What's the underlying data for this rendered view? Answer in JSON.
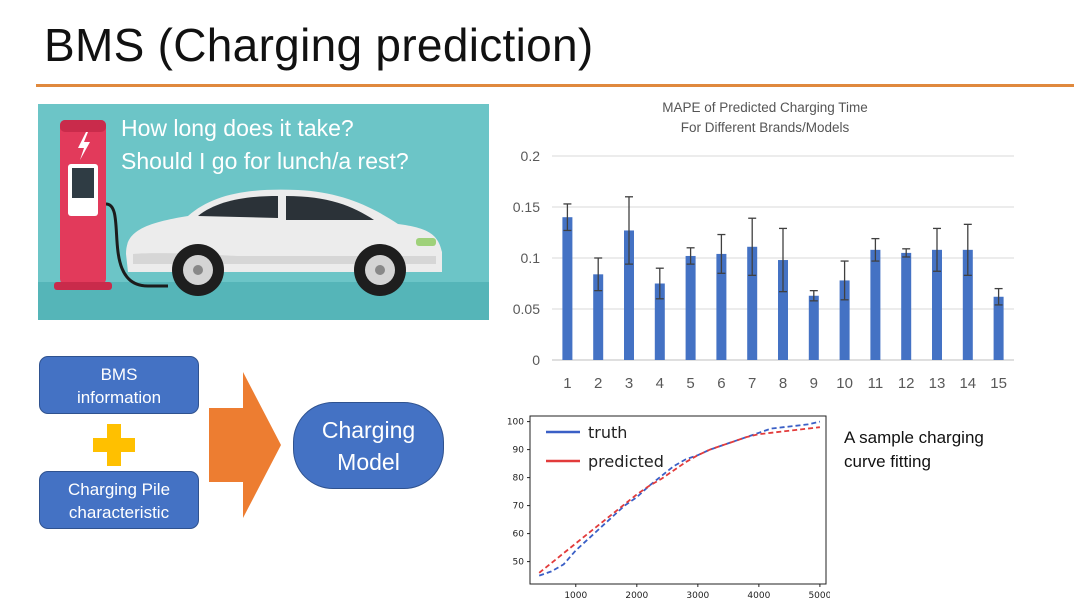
{
  "slide": {
    "title": "BMS (Charging prediction)",
    "accent_color": "#e0893d"
  },
  "hero": {
    "line1": "How long does it take?",
    "line2": "Should I go for lunch/a rest?",
    "background_color": "#6cc5c7"
  },
  "flow": {
    "bms_line1": "BMS",
    "bms_line2": "information",
    "plus_symbol": "+",
    "pile_line1": "Charging Pile",
    "pile_line2": "characteristic",
    "model_line1": "Charging",
    "model_line2": "Model",
    "box_color": "#4472c4",
    "arrow_color": "#ed7d31",
    "plus_color": "#ffc000"
  },
  "caption": {
    "line1": "A sample charging",
    "line2": "curve fitting"
  },
  "chart_data": [
    {
      "type": "bar",
      "title_line1": "MAPE of Predicted Charging Time",
      "title_line2": "For Different Brands/Models",
      "categories": [
        "1",
        "2",
        "3",
        "4",
        "5",
        "6",
        "7",
        "8",
        "9",
        "10",
        "11",
        "12",
        "13",
        "14",
        "15"
      ],
      "values": [
        0.14,
        0.084,
        0.127,
        0.075,
        0.102,
        0.104,
        0.111,
        0.098,
        0.063,
        0.078,
        0.108,
        0.105,
        0.108,
        0.108,
        0.062
      ],
      "error": [
        0.013,
        0.016,
        0.033,
        0.015,
        0.008,
        0.019,
        0.028,
        0.031,
        0.005,
        0.019,
        0.011,
        0.004,
        0.021,
        0.025,
        0.008
      ],
      "ylim": [
        0,
        0.2
      ],
      "yticks": [
        "0",
        "0.05",
        "0.1",
        "0.15",
        "0.2"
      ],
      "ytick_values": [
        0,
        0.05,
        0.1,
        0.15,
        0.2
      ],
      "grid": true,
      "color": "#4472c4"
    },
    {
      "type": "line",
      "xlim": [
        250,
        5100
      ],
      "ylim": [
        42,
        102
      ],
      "xticks": [
        1000,
        2000,
        3000,
        4000,
        5000
      ],
      "yticks": [
        50,
        60,
        70,
        80,
        90,
        100
      ],
      "legend_position": "top-left",
      "series": [
        {
          "name": "truth",
          "color": "#3a5fc6",
          "x": [
            400,
            600,
            800,
            1000,
            1200,
            1400,
            1600,
            1800,
            2000,
            2200,
            2400,
            2600,
            2800,
            3000,
            3200,
            3400,
            3600,
            3800,
            4000,
            4200,
            4400,
            4600,
            4800,
            5000
          ],
          "y": [
            45,
            46.5,
            49,
            54,
            58,
            62,
            66,
            70,
            73,
            77,
            80.5,
            84,
            86.5,
            88,
            90,
            91.5,
            93,
            94.5,
            96,
            97.5,
            98,
            98.5,
            99,
            100
          ]
        },
        {
          "name": "predicted",
          "color": "#e23b3b",
          "x": [
            400,
            600,
            800,
            1000,
            1200,
            1400,
            1600,
            1800,
            2000,
            2200,
            2400,
            2600,
            2800,
            3000,
            3200,
            3400,
            3600,
            3800,
            4000,
            4200,
            4400,
            4600,
            4800,
            5000
          ],
          "y": [
            46,
            49.5,
            53,
            56.5,
            60,
            63.5,
            67,
            70.5,
            74,
            77,
            79.5,
            82.5,
            85.5,
            88,
            90,
            91.5,
            93,
            94.5,
            95.5,
            96,
            96.5,
            97,
            97.5,
            98
          ]
        }
      ]
    }
  ]
}
